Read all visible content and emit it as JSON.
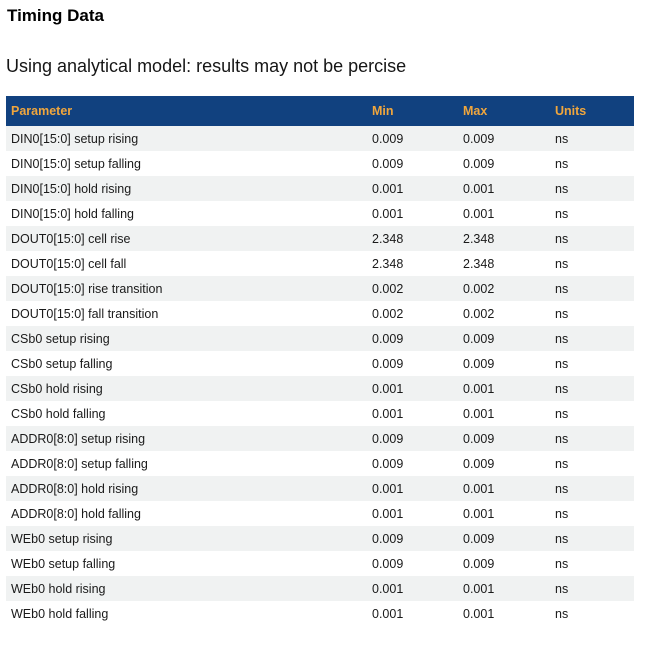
{
  "page": {
    "title": "Timing Data",
    "subtitle": "Using analytical model: results may not be percise"
  },
  "colors": {
    "header_bg": "#11417f",
    "header_text": "#f0a63d",
    "row_alt_bg": "#f0f2f2",
    "row_text": "#1a1a1a"
  },
  "table": {
    "columns": [
      "Parameter",
      "Min",
      "Max",
      "Units"
    ],
    "rows": [
      {
        "parameter": "DIN0[15:0] setup rising",
        "min": "0.009",
        "max": "0.009",
        "units": "ns"
      },
      {
        "parameter": "DIN0[15:0] setup falling",
        "min": "0.009",
        "max": "0.009",
        "units": "ns"
      },
      {
        "parameter": "DIN0[15:0] hold rising",
        "min": "0.001",
        "max": "0.001",
        "units": "ns"
      },
      {
        "parameter": "DIN0[15:0] hold falling",
        "min": "0.001",
        "max": "0.001",
        "units": "ns"
      },
      {
        "parameter": "DOUT0[15:0] cell rise",
        "min": "2.348",
        "max": "2.348",
        "units": "ns"
      },
      {
        "parameter": "DOUT0[15:0] cell fall",
        "min": "2.348",
        "max": "2.348",
        "units": "ns"
      },
      {
        "parameter": "DOUT0[15:0] rise transition",
        "min": "0.002",
        "max": "0.002",
        "units": "ns"
      },
      {
        "parameter": "DOUT0[15:0] fall transition",
        "min": "0.002",
        "max": "0.002",
        "units": "ns"
      },
      {
        "parameter": "CSb0 setup rising",
        "min": "0.009",
        "max": "0.009",
        "units": "ns"
      },
      {
        "parameter": "CSb0 setup falling",
        "min": "0.009",
        "max": "0.009",
        "units": "ns"
      },
      {
        "parameter": "CSb0 hold rising",
        "min": "0.001",
        "max": "0.001",
        "units": "ns"
      },
      {
        "parameter": "CSb0 hold falling",
        "min": "0.001",
        "max": "0.001",
        "units": "ns"
      },
      {
        "parameter": "ADDR0[8:0] setup rising",
        "min": "0.009",
        "max": "0.009",
        "units": "ns"
      },
      {
        "parameter": "ADDR0[8:0] setup falling",
        "min": "0.009",
        "max": "0.009",
        "units": "ns"
      },
      {
        "parameter": "ADDR0[8:0] hold rising",
        "min": "0.001",
        "max": "0.001",
        "units": "ns"
      },
      {
        "parameter": "ADDR0[8:0] hold falling",
        "min": "0.001",
        "max": "0.001",
        "units": "ns"
      },
      {
        "parameter": "WEb0 setup rising",
        "min": "0.009",
        "max": "0.009",
        "units": "ns"
      },
      {
        "parameter": "WEb0 setup falling",
        "min": "0.009",
        "max": "0.009",
        "units": "ns"
      },
      {
        "parameter": "WEb0 hold rising",
        "min": "0.001",
        "max": "0.001",
        "units": "ns"
      },
      {
        "parameter": "WEb0 hold falling",
        "min": "0.001",
        "max": "0.001",
        "units": "ns"
      }
    ]
  }
}
